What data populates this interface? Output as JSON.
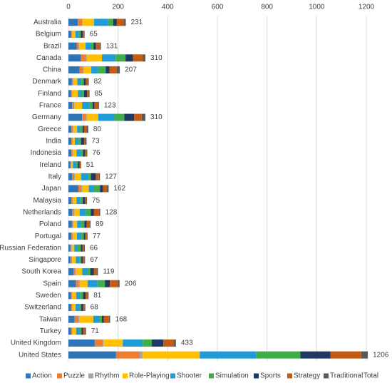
{
  "chart_data": {
    "type": "stacked-barh",
    "categories": [
      "Australia",
      "Belgium",
      "Brazil",
      "Canada",
      "China",
      "Denmark",
      "Finland",
      "France",
      "Germany",
      "Greece",
      "India",
      "Indonesia",
      "Ireland",
      "Italy",
      "Japan",
      "Malaysia",
      "Netherlands",
      "Poland",
      "Portugal",
      "Russian Federation",
      "Singapore",
      "South Korea",
      "Spain",
      "Sweden",
      "Switzerland",
      "Taiwan",
      "Turkey",
      "United Kingdom",
      "United States"
    ],
    "series": [
      {
        "name": "Action",
        "color": "#2e75b6",
        "values": [
          38,
          10,
          34,
          50,
          45,
          14,
          10,
          15,
          55,
          12,
          12,
          12,
          8,
          15,
          40,
          12,
          15,
          14,
          12,
          8,
          8,
          20,
          30,
          10,
          10,
          25,
          10,
          106,
          192
        ]
      },
      {
        "name": "Puzzle",
        "color": "#ed7d31",
        "values": [
          17,
          4,
          8,
          20,
          14,
          5,
          4,
          8,
          15,
          6,
          4,
          5,
          3,
          8,
          12,
          5,
          7,
          5,
          5,
          4,
          5,
          8,
          12,
          4,
          5,
          15,
          5,
          32,
          95
        ]
      },
      {
        "name": "Rhythm",
        "color": "#a5a5a5",
        "values": [
          3,
          2,
          2,
          5,
          3,
          2,
          2,
          2,
          5,
          2,
          2,
          2,
          1,
          3,
          5,
          2,
          3,
          2,
          2,
          2,
          2,
          3,
          5,
          2,
          2,
          5,
          2,
          3,
          12
        ]
      },
      {
        "name": "Role-Playing",
        "color": "#ffc000",
        "values": [
          45,
          12,
          25,
          60,
          30,
          15,
          22,
          30,
          45,
          15,
          8,
          14,
          6,
          25,
          25,
          14,
          20,
          14,
          15,
          10,
          15,
          25,
          30,
          15,
          12,
          55,
          14,
          78,
          230
        ]
      },
      {
        "name": "Shooter",
        "color": "#1f9bd7",
        "values": [
          55,
          14,
          20,
          55,
          26,
          16,
          15,
          30,
          65,
          12,
          15,
          16,
          12,
          30,
          20,
          15,
          25,
          15,
          18,
          12,
          14,
          20,
          40,
          16,
          14,
          25,
          12,
          80,
          227
        ]
      },
      {
        "name": "Simulation",
        "color": "#3fae49",
        "values": [
          22,
          8,
          12,
          40,
          32,
          10,
          10,
          12,
          40,
          10,
          10,
          10,
          8,
          10,
          25,
          10,
          20,
          14,
          10,
          14,
          8,
          12,
          30,
          12,
          8,
          10,
          10,
          37,
          178
        ]
      },
      {
        "name": "Sports",
        "color": "#1f3864",
        "values": [
          15,
          8,
          10,
          30,
          15,
          8,
          12,
          8,
          40,
          6,
          12,
          7,
          7,
          20,
          12,
          8,
          13,
          10,
          6,
          6,
          6,
          15,
          20,
          10,
          8,
          8,
          6,
          46,
          121
        ]
      },
      {
        "name": "Strategy",
        "color": "#c55a11",
        "values": [
          28,
          5,
          16,
          40,
          30,
          8,
          7,
          14,
          30,
          10,
          6,
          7,
          4,
          12,
          15,
          6,
          20,
          12,
          6,
          7,
          6,
          12,
          32,
          8,
          6,
          20,
          8,
          43,
          124
        ]
      },
      {
        "name": "Traditional",
        "color": "#595959",
        "values": [
          8,
          2,
          4,
          10,
          12,
          4,
          3,
          4,
          15,
          7,
          4,
          3,
          2,
          4,
          8,
          3,
          5,
          3,
          3,
          3,
          3,
          4,
          7,
          4,
          3,
          5,
          4,
          8,
          27
        ]
      },
      {
        "name": "Total",
        "values": [
          231,
          65,
          131,
          310,
          207,
          82,
          85,
          123,
          310,
          80,
          73,
          76,
          51,
          127,
          162,
          75,
          128,
          89,
          77,
          66,
          67,
          119,
          206,
          81,
          68,
          168,
          71,
          433,
          1206
        ]
      }
    ],
    "xlim": [
      0,
      1200
    ],
    "xticks": [
      0,
      200,
      400,
      600,
      800,
      1000,
      1200
    ],
    "grid": true,
    "legend": "bottom"
  }
}
